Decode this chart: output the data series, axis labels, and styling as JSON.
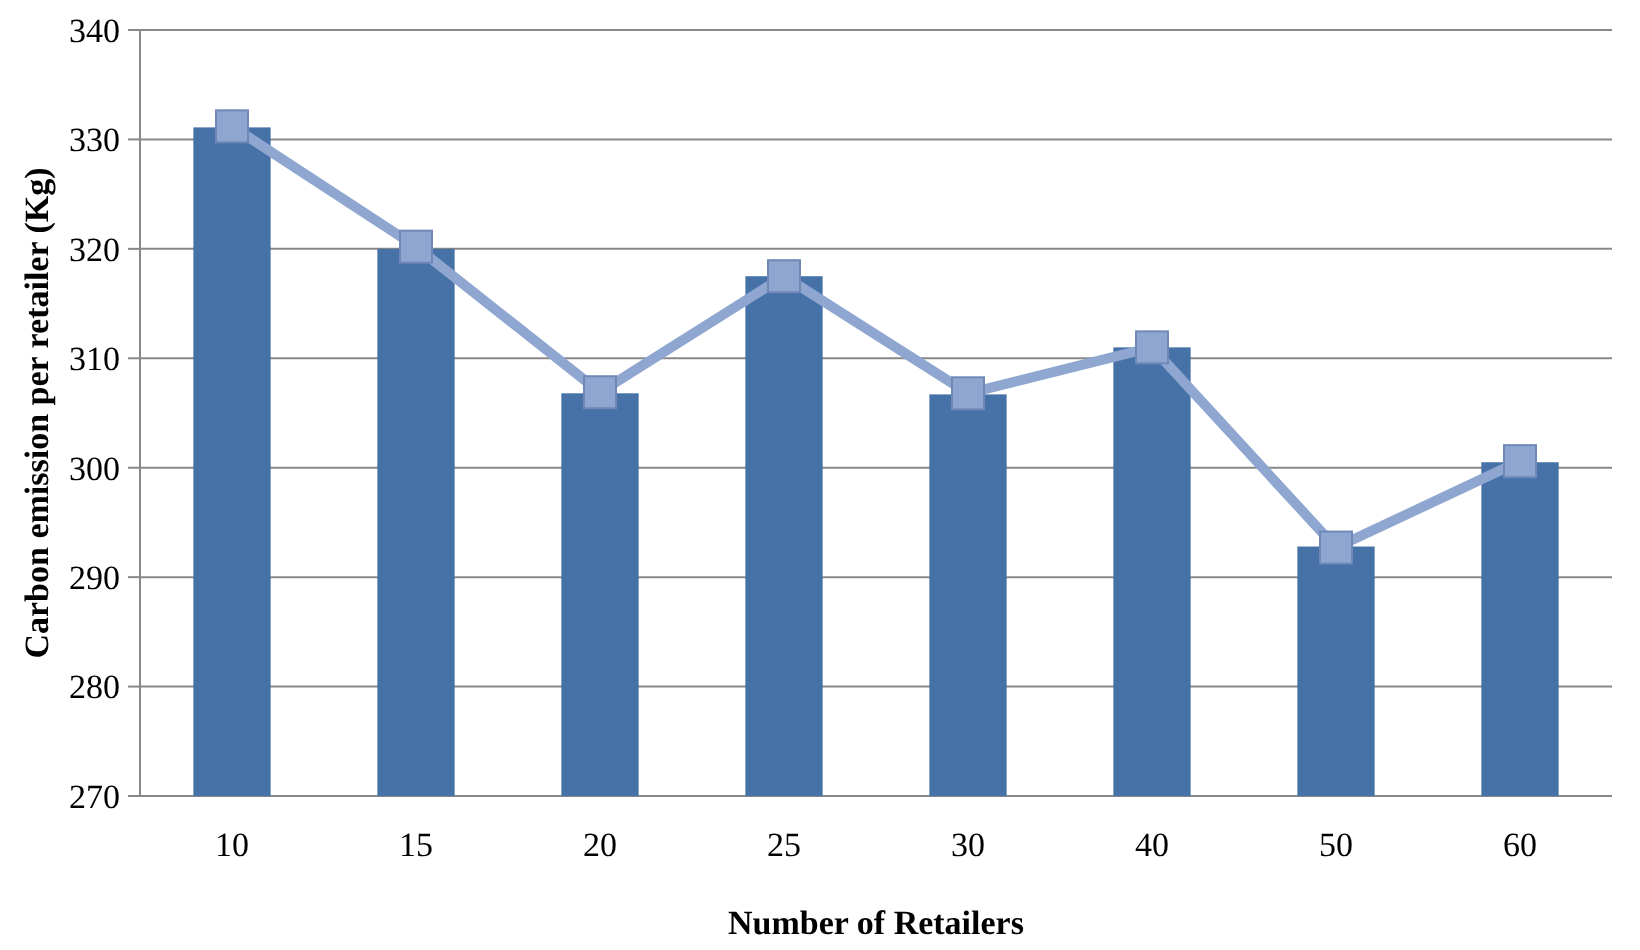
{
  "chart_data": {
    "type": "bar",
    "xlabel": "Number of Retailers",
    "ylabel": "Carbon emission per retailer (Kg)",
    "categories": [
      "10",
      "15",
      "20",
      "25",
      "30",
      "40",
      "50",
      "60"
    ],
    "series": [
      {
        "color": "#4672a8",
        "values": [
          331.1,
          320.0,
          306.8,
          317.5,
          306.7,
          311.0,
          292.8,
          300.5
        ]
      },
      {
        "type": "line",
        "color": "#8ea6d0",
        "marker": "square",
        "values": [
          331.2,
          320.2,
          306.9,
          317.5,
          306.8,
          311.0,
          292.7,
          300.6
        ]
      }
    ],
    "ylim": [
      270,
      340
    ],
    "yticks": [
      270,
      280,
      290,
      300,
      310,
      320,
      330,
      340
    ],
    "grid": "y"
  }
}
